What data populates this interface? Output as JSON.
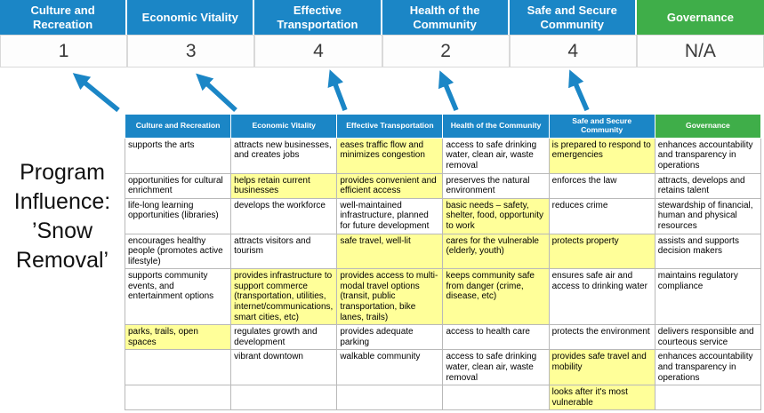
{
  "colors": {
    "blue": "#1b86c6",
    "green": "#3fae49",
    "highlight": "#ffff99"
  },
  "program_label": {
    "lines": [
      "Program",
      "Influence:",
      "’Snow",
      "Removal’"
    ]
  },
  "summary": {
    "columns": [
      {
        "label": "Culture and Recreation",
        "score": "1",
        "color": "blue"
      },
      {
        "label": "Economic Vitality",
        "score": "3",
        "color": "blue"
      },
      {
        "label": "Effective Transportation",
        "score": "4",
        "color": "blue"
      },
      {
        "label": "Health of the Community",
        "score": "2",
        "color": "blue"
      },
      {
        "label": "Safe and Secure Community",
        "score": "4",
        "color": "blue"
      },
      {
        "label": "Governance",
        "score": "N/A",
        "color": "green"
      }
    ]
  },
  "matrix": {
    "headers": [
      {
        "label": "Culture and Recreation",
        "color": "blue"
      },
      {
        "label": "Economic Vitality",
        "color": "blue"
      },
      {
        "label": "Effective Transportation",
        "color": "blue"
      },
      {
        "label": "Health of the Community",
        "color": "blue"
      },
      {
        "label": "Safe and Secure Community",
        "color": "blue"
      },
      {
        "label": "Governance",
        "color": "green"
      }
    ],
    "rows": [
      {
        "cells": [
          {
            "text": "supports the arts",
            "highlight": false
          },
          {
            "text": "attracts new businesses, and creates jobs",
            "highlight": false
          },
          {
            "text": "eases traffic flow and minimizes congestion",
            "highlight": true
          },
          {
            "text": "access to safe drinking water, clean air, waste removal",
            "highlight": false
          },
          {
            "text": "is prepared to respond to emergencies",
            "highlight": true
          },
          {
            "text": "enhances accountability and transparency in operations",
            "highlight": false
          }
        ]
      },
      {
        "cells": [
          {
            "text": "opportunities for cultural enrichment",
            "highlight": false
          },
          {
            "text": "helps retain current businesses",
            "highlight": true
          },
          {
            "text": "provides convenient and efficient access",
            "highlight": true
          },
          {
            "text": "preserves the natural environment",
            "highlight": false
          },
          {
            "text": "enforces the law",
            "highlight": false
          },
          {
            "text": "attracts, develops and retains talent",
            "highlight": false
          }
        ]
      },
      {
        "cells": [
          {
            "text": "life-long learning opportunities (libraries)",
            "highlight": false
          },
          {
            "text": "develops the workforce",
            "highlight": false
          },
          {
            "text": "well-maintained infrastructure, planned for future development",
            "highlight": false
          },
          {
            "text": "basic needs – safety, shelter, food, opportunity to work",
            "highlight": true
          },
          {
            "text": "reduces crime",
            "highlight": false
          },
          {
            "text": "stewardship of financial, human and physical resources",
            "highlight": false
          }
        ]
      },
      {
        "cells": [
          {
            "text": "encourages healthy people (promotes active lifestyle)",
            "highlight": false
          },
          {
            "text": "attracts visitors and tourism",
            "highlight": false
          },
          {
            "text": "safe travel, well-lit",
            "highlight": true
          },
          {
            "text": "cares for the vulnerable (elderly, youth)",
            "highlight": true
          },
          {
            "text": "protects property",
            "highlight": true
          },
          {
            "text": "assists and supports decision makers",
            "highlight": false
          }
        ]
      },
      {
        "cells": [
          {
            "text": "supports community events, and entertainment options",
            "highlight": false
          },
          {
            "text": "provides infrastructure to support commerce (transportation, utilities, internet/communications, smart cities, etc)",
            "highlight": true
          },
          {
            "text": "provides access to multi-modal travel options (transit, public transportation, bike lanes, trails)",
            "highlight": true
          },
          {
            "text": "keeps community safe from danger (crime, disease, etc)",
            "highlight": true
          },
          {
            "text": "ensures safe air and access to drinking water",
            "highlight": false
          },
          {
            "text": "maintains regulatory compliance",
            "highlight": false
          }
        ]
      },
      {
        "cells": [
          {
            "text": "parks, trails, open spaces",
            "highlight": true
          },
          {
            "text": "regulates growth and development",
            "highlight": false
          },
          {
            "text": "provides adequate parking",
            "highlight": false
          },
          {
            "text": "access to health care",
            "highlight": false
          },
          {
            "text": "protects the environment",
            "highlight": false
          },
          {
            "text": "delivers responsible and courteous service",
            "highlight": false
          }
        ]
      },
      {
        "cells": [
          {
            "text": "",
            "highlight": false
          },
          {
            "text": "vibrant downtown",
            "highlight": false
          },
          {
            "text": "walkable community",
            "highlight": false
          },
          {
            "text": "access to safe drinking water, clean air, waste removal",
            "highlight": false
          },
          {
            "text": "provides safe travel and mobility",
            "highlight": true
          },
          {
            "text": "enhances accountability and transparency in operations",
            "highlight": false
          }
        ]
      },
      {
        "cells": [
          {
            "text": "",
            "highlight": false
          },
          {
            "text": "",
            "highlight": false
          },
          {
            "text": "",
            "highlight": false
          },
          {
            "text": "",
            "highlight": false
          },
          {
            "text": "looks after it's most vulnerable",
            "highlight": true
          },
          {
            "text": "",
            "highlight": false
          }
        ]
      }
    ]
  }
}
